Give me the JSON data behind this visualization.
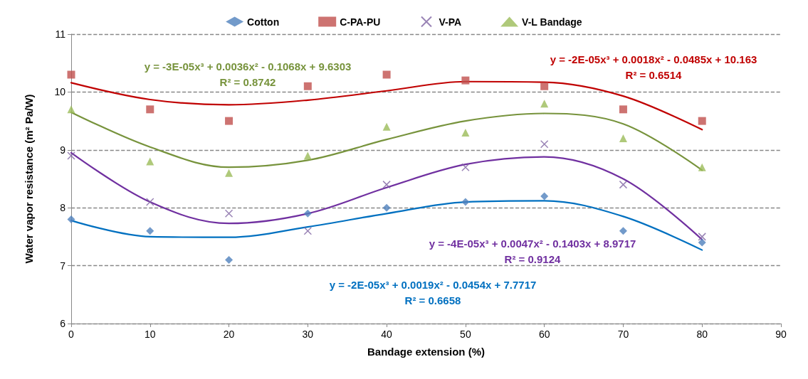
{
  "chart_data": {
    "type": "scatter",
    "xlabel": "Bandage extension (%)",
    "ylabel": "Water vapor resistance (m² Pa/W)",
    "xlim": [
      0,
      90
    ],
    "xticks": [
      0,
      10,
      20,
      30,
      40,
      50,
      60,
      70,
      80,
      90
    ],
    "ylim": [
      6,
      11
    ],
    "yticks": [
      6,
      7,
      8,
      9,
      10,
      11
    ],
    "grid": "y",
    "legend": "top",
    "x": [
      0,
      10,
      20,
      30,
      40,
      50,
      60,
      70,
      80
    ],
    "series": [
      {
        "name": "Cotton",
        "color": "#4f81bd",
        "marker": "diamond",
        "values": [
          7.8,
          7.6,
          7.1,
          7.9,
          8.0,
          8.1,
          8.2,
          7.6,
          7.4
        ]
      },
      {
        "name": "C-PA-PU",
        "color": "#c0504d",
        "marker": "square",
        "values": [
          10.3,
          9.7,
          9.5,
          10.1,
          10.3,
          10.2,
          10.1,
          9.7,
          9.5
        ]
      },
      {
        "name": "V-PA",
        "color": "#8064a2",
        "marker": "cross",
        "values": [
          8.9,
          8.1,
          7.9,
          7.6,
          8.4,
          8.7,
          9.1,
          8.4,
          7.5
        ]
      },
      {
        "name": "V-L Bandage",
        "color": "#9bbb59",
        "marker": "triangle",
        "values": [
          9.7,
          8.8,
          8.6,
          8.9,
          9.4,
          9.3,
          9.8,
          9.2,
          8.7
        ]
      },
      {
        "type": "line",
        "color": "#77933c",
        "x": [
          0,
          10,
          20,
          30,
          40,
          50,
          60,
          70,
          80
        ],
        "values": [
          9.65,
          9.05,
          8.7,
          8.82,
          9.18,
          9.5,
          9.63,
          9.45,
          8.65
        ]
      },
      {
        "type": "line",
        "color": "#c00000",
        "x": [
          0,
          10,
          20,
          30,
          40,
          50,
          60,
          70,
          80
        ],
        "values": [
          10.16,
          9.87,
          9.78,
          9.86,
          10.02,
          10.18,
          10.17,
          9.93,
          9.35
        ]
      },
      {
        "type": "line",
        "color": "#7030a0",
        "x": [
          0,
          10,
          20,
          30,
          40,
          50,
          60,
          70,
          80
        ],
        "values": [
          8.95,
          8.1,
          7.73,
          7.9,
          8.35,
          8.75,
          8.88,
          8.5,
          7.45
        ]
      },
      {
        "type": "line",
        "color": "#0070c0",
        "x": [
          0,
          10,
          20,
          30,
          40,
          50,
          60,
          70,
          80
        ],
        "values": [
          7.78,
          7.5,
          7.49,
          7.67,
          7.9,
          8.1,
          8.12,
          7.85,
          7.27
        ]
      }
    ],
    "annotations": [
      "y = -3E-05x³ + 0.0036x² - 0.1068x + 9.6303\nR² = 0.8742",
      "y = -2E-05x³ + 0.0018x² - 0.0485x + 10.163\nR² = 0.6514",
      "y = -4E-05x³ + 0.0047x² - 0.1403x + 8.9717\nR² = 0.9124",
      "y = -2E-05x³ + 0.0019x² - 0.0454x + 7.7717\nR² = 0.6658"
    ]
  }
}
